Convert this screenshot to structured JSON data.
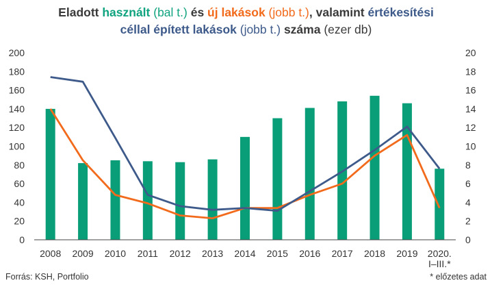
{
  "title": {
    "line1": [
      {
        "text": "Eladott ",
        "style": "bold"
      },
      {
        "text": "használt",
        "style": "green-bold"
      },
      {
        "text": " (bal t.)",
        "style": "green"
      },
      {
        "text": " és ",
        "style": "bold"
      },
      {
        "text": "új lakások",
        "style": "orange-bold"
      },
      {
        "text": " (jobb t.)",
        "style": "orange"
      },
      {
        "text": ", valamint ",
        "style": "bold"
      },
      {
        "text": "értékesítési",
        "style": "blue-bold"
      }
    ],
    "line2": [
      {
        "text": "céllal épített lakások",
        "style": "blue-bold"
      },
      {
        "text": " (jobb t.)",
        "style": "blue"
      },
      {
        "text": " száma",
        "style": "bold"
      },
      {
        "text": " (ezer db)",
        "style": "normal"
      }
    ]
  },
  "footer": {
    "source": "Forrás: KSH, Portfolio",
    "note": "* előzetes adat"
  },
  "colors": {
    "bars": "#0a9e78",
    "new_homes": "#f26a1b",
    "built_for_sale": "#3d5a8a",
    "axis": "#444444"
  },
  "chart_data": {
    "type": "bar",
    "categories": [
      "2008",
      "2009",
      "2010",
      "2011",
      "2012",
      "2013",
      "2014",
      "2015",
      "2016",
      "2017",
      "2018",
      "2019",
      "2020.\nI–III.*"
    ],
    "left_axis": {
      "ylim": [
        0,
        200
      ],
      "ticks": [
        0,
        20,
        40,
        60,
        80,
        100,
        120,
        140,
        160,
        180,
        200
      ]
    },
    "right_axis": {
      "ylim": [
        0,
        20
      ],
      "ticks": [
        0,
        2,
        4,
        6,
        8,
        10,
        12,
        14,
        16,
        18,
        20
      ]
    },
    "series": [
      {
        "name": "használt",
        "axis": "left",
        "kind": "bar",
        "values": [
          140,
          82,
          85,
          84,
          83,
          86,
          110,
          130,
          141,
          148,
          154,
          146,
          76
        ]
      },
      {
        "name": "új lakások",
        "axis": "right",
        "kind": "line",
        "values": [
          14.0,
          8.5,
          4.8,
          3.9,
          2.6,
          2.3,
          3.4,
          3.4,
          4.8,
          6.0,
          9.0,
          11.2,
          3.4
        ]
      },
      {
        "name": "értékesítési céllal épített lakások",
        "axis": "right",
        "kind": "line",
        "values": [
          17.4,
          16.9,
          10.9,
          4.8,
          3.6,
          3.2,
          3.4,
          3.1,
          5.2,
          7.3,
          9.6,
          12.1,
          7.6
        ]
      }
    ],
    "grid": false
  }
}
